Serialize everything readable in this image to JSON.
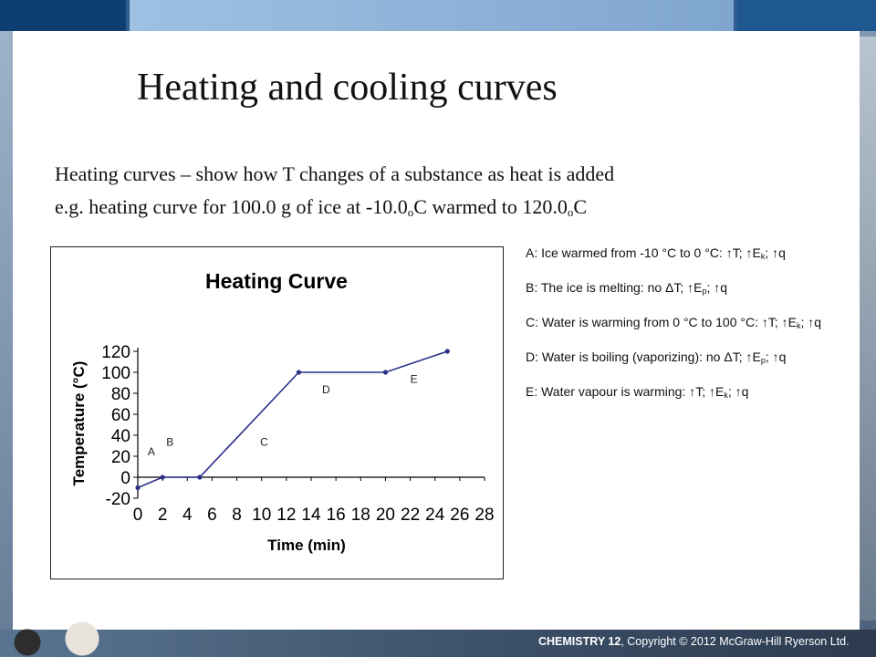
{
  "slide": {
    "title": "Heating and cooling curves",
    "line1": "Heating curves – show how T changes of a substance as heat is added",
    "line2_prefix": "e.g. heating curve for 100.0 g of ice at -10.0",
    "line2_sub1": "o",
    "line2_mid": "C warmed to 120.0",
    "line2_sub2": "o",
    "line2_suffix": "C"
  },
  "notes": [
    {
      "text": "A:  Ice warmed from -10 °C to 0 °C:  ↑T;  ↑E",
      "sub": "k",
      "tail": ";  ↑q"
    },
    {
      "text": "B:  The ice is melting: no ΔT;  ↑E",
      "sub": "p",
      "tail": ";  ↑q"
    },
    {
      "text": "C:  Water is warming from 0 °C to 100 °C:  ↑T;  ↑E",
      "sub": "k",
      "tail": ";  ↑q"
    },
    {
      "text": "D:  Water is boiling (vaporizing): no ΔT;  ↑E",
      "sub": "p",
      "tail": ";  ↑q"
    },
    {
      "text": "E:  Water vapour is warming: ↑T;  ↑E",
      "sub": "k",
      "tail": ";  ↑q"
    }
  ],
  "footer": {
    "brand": "CHEMISTRY 12",
    "rest": ", Copyright © 2012 McGraw-Hill Ryerson Ltd."
  },
  "colors": {
    "line": "#2a2f8a",
    "axis": "#000000"
  },
  "chart_data": {
    "type": "line",
    "title": "Heating Curve",
    "xlabel": "Time (min)",
    "ylabel": "Temperature (°C)",
    "xlim": [
      0,
      28
    ],
    "ylim": [
      -20,
      120
    ],
    "xticks": [
      0,
      2,
      4,
      6,
      8,
      10,
      12,
      14,
      16,
      18,
      20,
      22,
      24,
      26,
      28
    ],
    "yticks": [
      -20,
      0,
      20,
      40,
      60,
      80,
      100,
      120
    ],
    "x": [
      0,
      2,
      5,
      13,
      20,
      25
    ],
    "y": [
      -10,
      0,
      0,
      100,
      100,
      120
    ],
    "segment_labels": [
      {
        "text": "A",
        "x": 1.1,
        "y": 21
      },
      {
        "text": "B",
        "x": 2.6,
        "y": 30
      },
      {
        "text": "C",
        "x": 10.2,
        "y": 30
      },
      {
        "text": "D",
        "x": 15.2,
        "y": 80
      },
      {
        "text": "E",
        "x": 22.3,
        "y": 90
      }
    ],
    "grid": false
  }
}
